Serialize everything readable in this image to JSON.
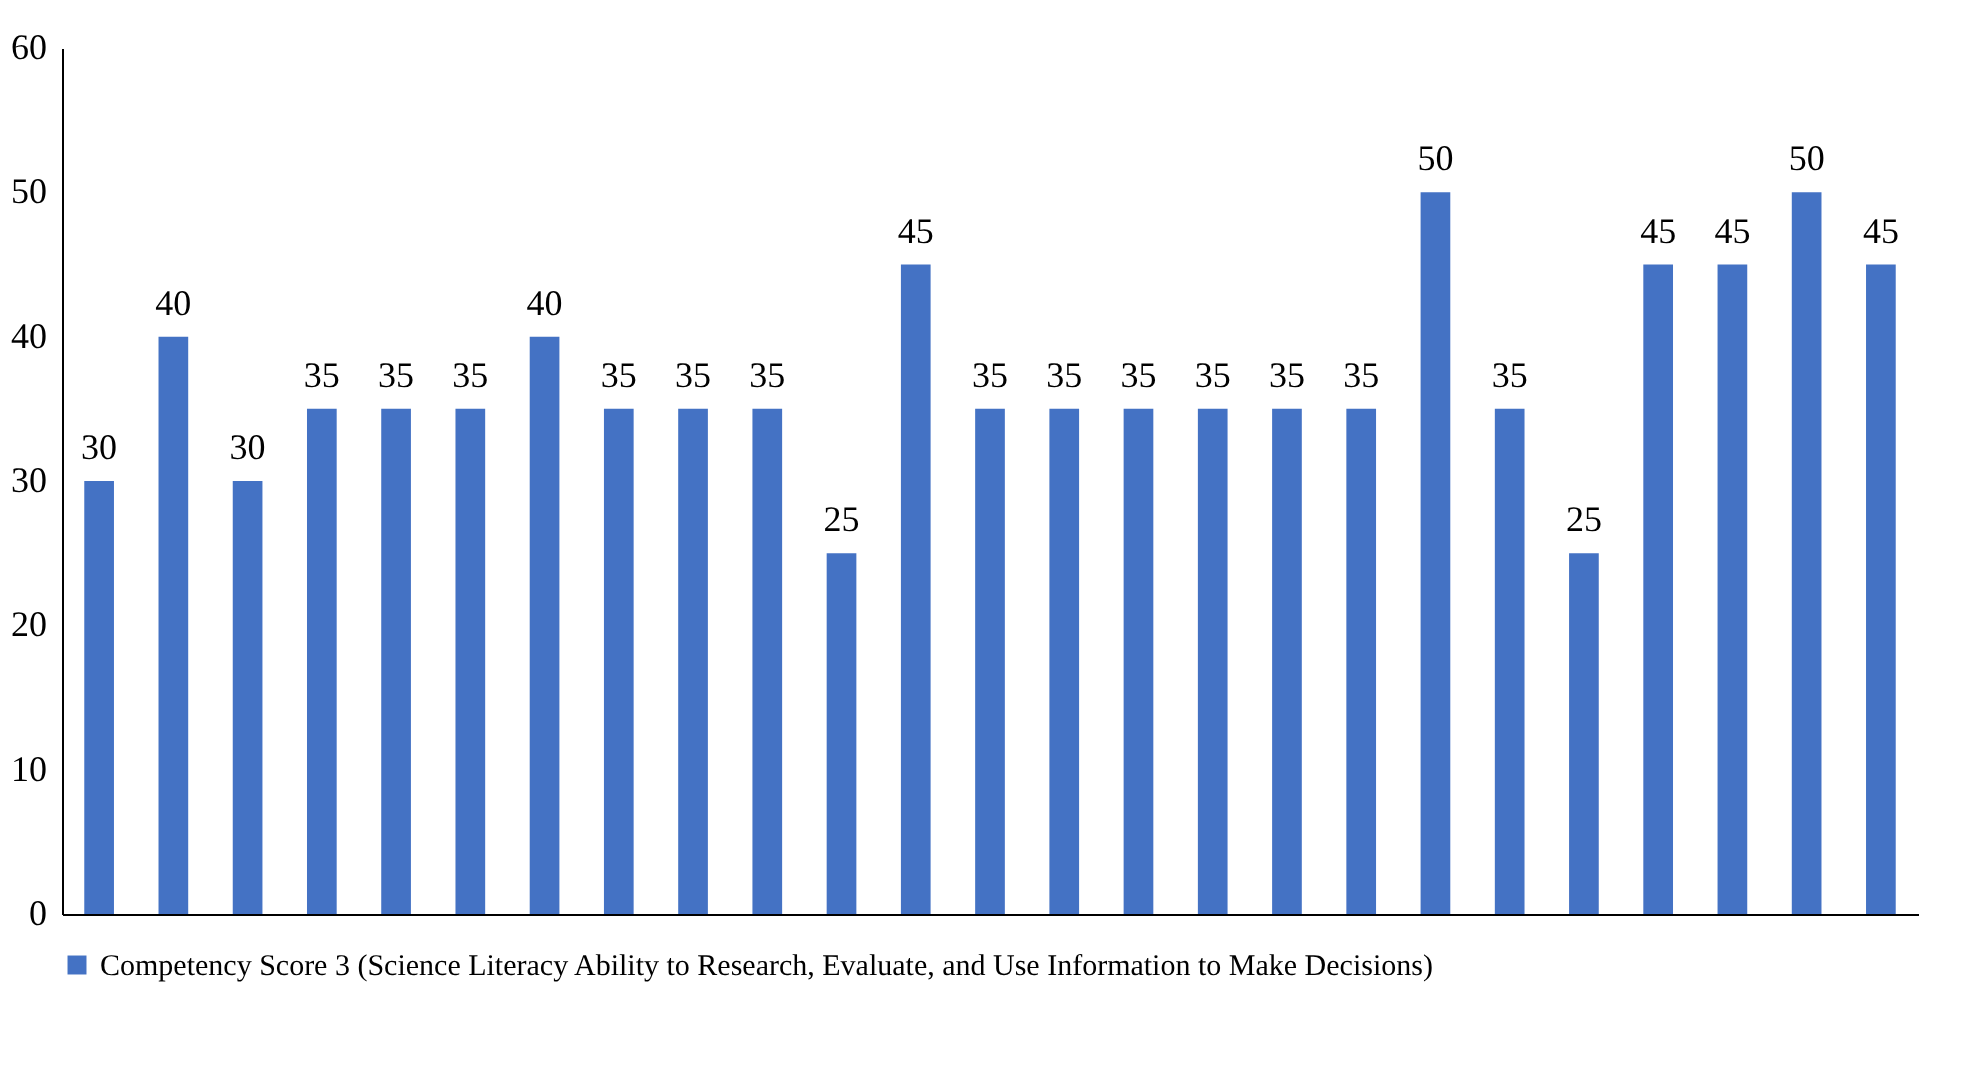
{
  "chart_data": {
    "type": "bar",
    "categories": [
      null,
      null,
      null,
      null,
      null,
      null,
      null,
      null,
      null,
      null,
      null,
      null,
      null,
      null,
      null,
      null,
      null,
      null,
      null,
      null,
      null,
      null,
      null,
      null,
      null
    ],
    "series": [
      {
        "name": "Competency Score 3 (Science Literacy Ability to Research, Evaluate, and Use Information to Make Decisions)",
        "color": "#4472c4",
        "values": [
          30,
          40,
          30,
          35,
          35,
          35,
          40,
          35,
          35,
          35,
          25,
          45,
          35,
          35,
          35,
          35,
          35,
          35,
          50,
          35,
          25,
          45,
          45,
          50,
          45
        ]
      }
    ],
    "ylim": [
      0,
      60
    ],
    "yticks": [
      0,
      10,
      20,
      30,
      40,
      50,
      60
    ],
    "grid": false,
    "legend": "bottom",
    "data_labels": true,
    "tick_labels": "y"
  }
}
